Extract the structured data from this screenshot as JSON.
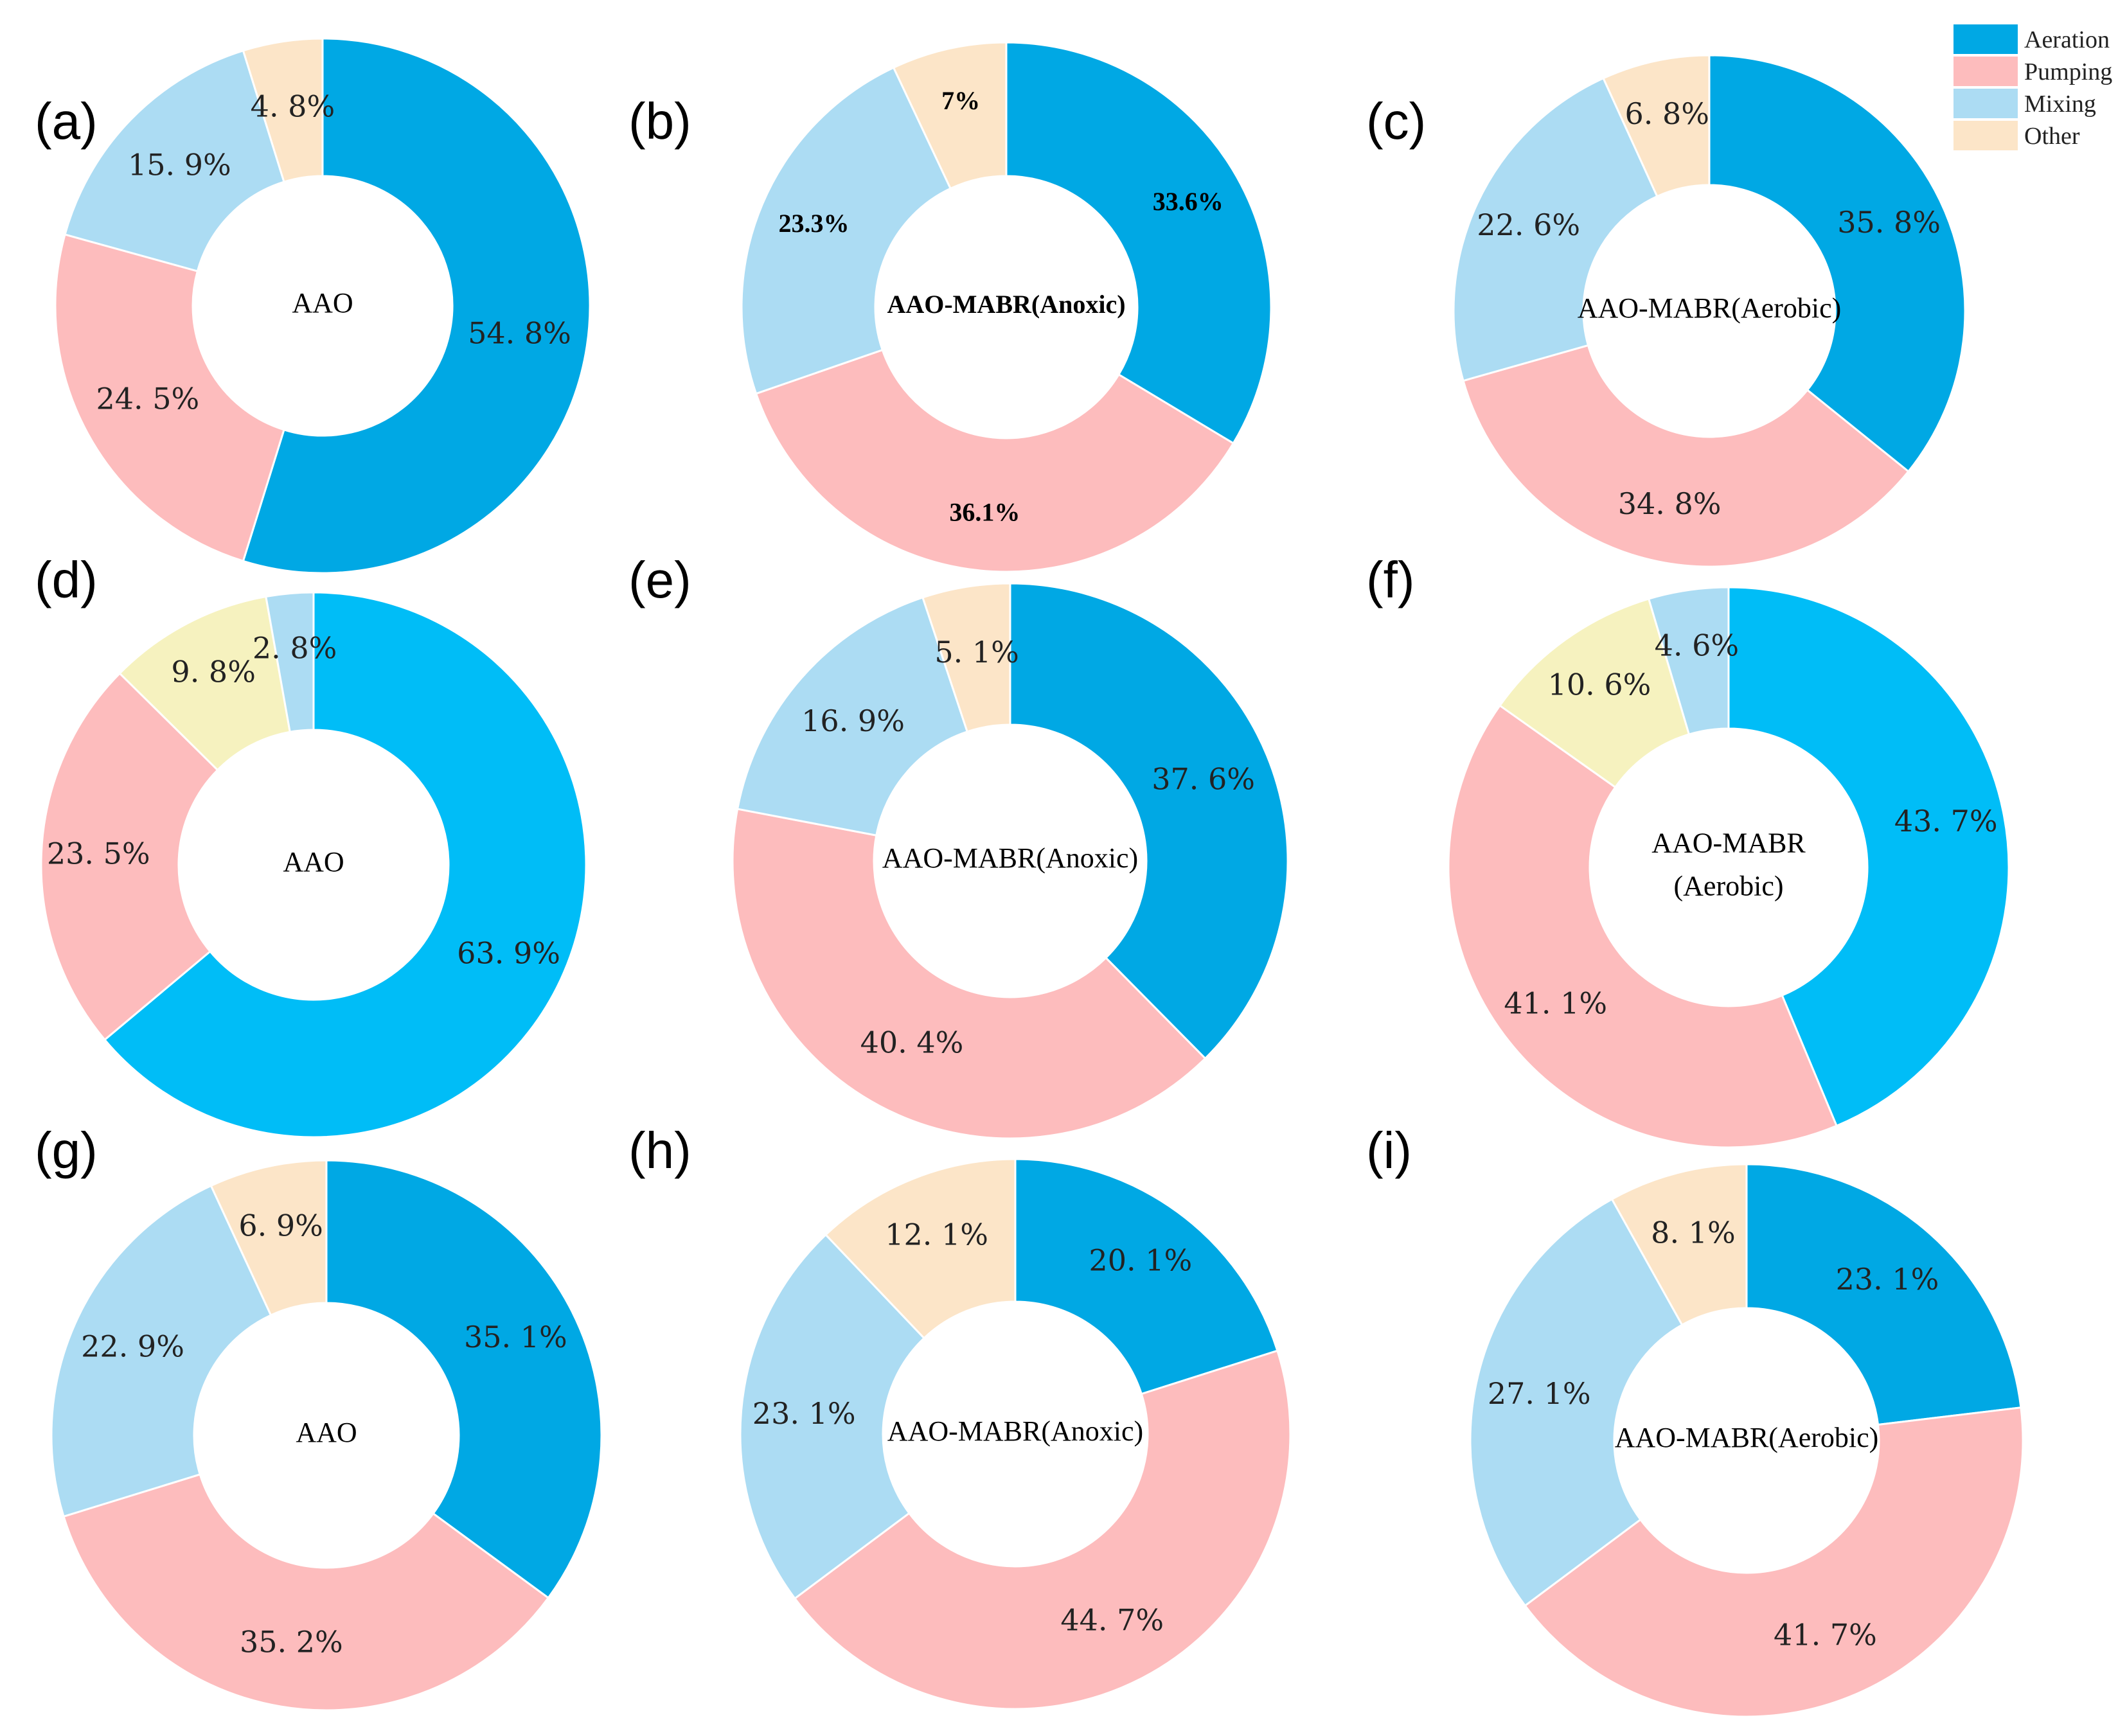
{
  "legend": {
    "items": [
      {
        "label": "Aeration",
        "color": "#00a8e4"
      },
      {
        "label": "Pumping",
        "color": "#fdbcbd"
      },
      {
        "label": "Mixing",
        "color": "#acdcf3"
      },
      {
        "label": "Other",
        "color": "#fce5c8"
      }
    ]
  },
  "chart_data": [
    {
      "type": "pie",
      "panel": "(a)",
      "center_label": [
        "AAO"
      ],
      "slices": [
        {
          "category": "Aeration",
          "value": 54.8,
          "label": "54. 8%"
        },
        {
          "category": "Pumping",
          "value": 24.5,
          "label": "24. 5%"
        },
        {
          "category": "Mixing",
          "value": 15.9,
          "label": "15. 9%"
        },
        {
          "category": "Other",
          "value": 4.8,
          "label": "4. 8%"
        }
      ]
    },
    {
      "type": "pie",
      "panel": "(b)",
      "center_label": [
        "AAO-MABR(Anoxic)"
      ],
      "slices": [
        {
          "category": "Aeration",
          "value": 33.6,
          "label": "33.6%"
        },
        {
          "category": "Pumping",
          "value": 36.1,
          "label": "36.1%"
        },
        {
          "category": "Mixing",
          "value": 23.3,
          "label": "23.3%"
        },
        {
          "category": "Other",
          "value": 7,
          "label": "7%"
        }
      ]
    },
    {
      "type": "pie",
      "panel": "(c)",
      "center_label": [
        "AAO-MABR(Aerobic)"
      ],
      "slices": [
        {
          "category": "Aeration",
          "value": 35.8,
          "label": "35. 8%"
        },
        {
          "category": "Pumping",
          "value": 34.8,
          "label": "34. 8%"
        },
        {
          "category": "Mixing",
          "value": 22.6,
          "label": "22. 6%"
        },
        {
          "category": "Other",
          "value": 6.8,
          "label": "6. 8%"
        }
      ]
    },
    {
      "type": "pie",
      "panel": "(d)",
      "center_label": [
        "AAO"
      ],
      "slices": [
        {
          "category": "Aeration",
          "value": 63.9,
          "label": "63. 9%"
        },
        {
          "category": "Pumping",
          "value": 23.5,
          "label": "23. 5%"
        },
        {
          "category": "Other",
          "value": 9.8,
          "label": "9. 8%"
        },
        {
          "category": "Mixing",
          "value": 2.8,
          "label": "2. 8%"
        }
      ]
    },
    {
      "type": "pie",
      "panel": "(e)",
      "center_label": [
        "AAO-MABR(Anoxic)"
      ],
      "slices": [
        {
          "category": "Aeration",
          "value": 37.6,
          "label": "37. 6%"
        },
        {
          "category": "Pumping",
          "value": 40.4,
          "label": "40. 4%"
        },
        {
          "category": "Mixing",
          "value": 16.9,
          "label": "16. 9%"
        },
        {
          "category": "Other",
          "value": 5.1,
          "label": "5. 1%"
        }
      ]
    },
    {
      "type": "pie",
      "panel": "(f)",
      "center_label": [
        "AAO-MABR",
        "(Aerobic)"
      ],
      "slices": [
        {
          "category": "Aeration",
          "value": 43.7,
          "label": "43. 7%"
        },
        {
          "category": "Pumping",
          "value": 41.1,
          "label": "41. 1%"
        },
        {
          "category": "Other",
          "value": 10.6,
          "label": "10. 6%"
        },
        {
          "category": "Mixing",
          "value": 4.6,
          "label": "4. 6%"
        }
      ]
    },
    {
      "type": "pie",
      "panel": "(g)",
      "center_label": [
        "AAO"
      ],
      "slices": [
        {
          "category": "Aeration",
          "value": 35.1,
          "label": "35. 1%"
        },
        {
          "category": "Pumping",
          "value": 35.2,
          "label": "35. 2%"
        },
        {
          "category": "Mixing",
          "value": 22.9,
          "label": "22. 9%"
        },
        {
          "category": "Other",
          "value": 6.9,
          "label": "6. 9%"
        }
      ]
    },
    {
      "type": "pie",
      "panel": "(h)",
      "center_label": [
        "AAO-MABR(Anoxic)"
      ],
      "slices": [
        {
          "category": "Aeration",
          "value": 20.1,
          "label": "20. 1%"
        },
        {
          "category": "Pumping",
          "value": 44.7,
          "label": "44. 7%"
        },
        {
          "category": "Mixing",
          "value": 23.1,
          "label": "23. 1%"
        },
        {
          "category": "Other",
          "value": 12.1,
          "label": "12. 1%"
        }
      ]
    },
    {
      "type": "pie",
      "panel": "(i)",
      "center_label": [
        "AAO-MABR(Aerobic)"
      ],
      "slices": [
        {
          "category": "Aeration",
          "value": 23.1,
          "label": "23. 1%"
        },
        {
          "category": "Pumping",
          "value": 41.7,
          "label": "41. 7%"
        },
        {
          "category": "Mixing",
          "value": 27.1,
          "label": "27. 1%"
        },
        {
          "category": "Other",
          "value": 8.1,
          "label": "8. 1%"
        }
      ]
    }
  ]
}
